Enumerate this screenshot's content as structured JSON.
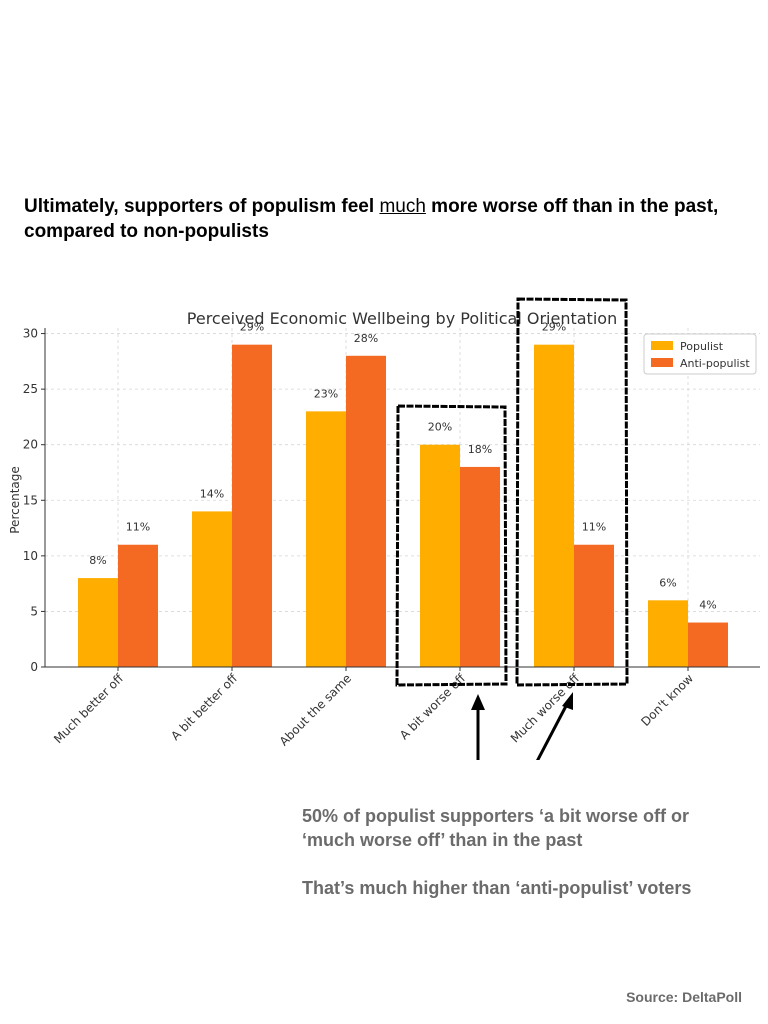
{
  "headline": {
    "before": "Ultimately, supporters of populism feel ",
    "emphasis": "much",
    "after": " more worse off than in the past, compared to non-populists"
  },
  "chart_data": {
    "type": "bar",
    "title": "Perceived Economic Wellbeing by Political Orientation",
    "xlabel": "",
    "ylabel": "Percentage",
    "ylim": [
      0,
      30.5
    ],
    "yticks": [
      0,
      5,
      10,
      15,
      20,
      25,
      30
    ],
    "grid": true,
    "legend_position": "top-right",
    "categories": [
      "Much better off",
      "A bit better off",
      "About the same",
      "A bit worse off",
      "Much worse off",
      "Don't know"
    ],
    "series": [
      {
        "name": "Populist",
        "color": "#FFAE00",
        "values": [
          8,
          14,
          23,
          20,
          29,
          6
        ],
        "labels": [
          "8%",
          "14%",
          "23%",
          "20%",
          "29%",
          "6%"
        ]
      },
      {
        "name": "Anti-populist",
        "color": "#F46A23",
        "values": [
          11,
          29,
          28,
          18,
          11,
          4
        ],
        "labels": [
          "11%",
          "29%",
          "28%",
          "18%",
          "11%",
          "4%"
        ]
      }
    ],
    "highlighted_categories": [
      "A bit worse off",
      "Much worse off"
    ]
  },
  "annotation": {
    "line1": "50% of populist supporters ‘a bit worse off or ‘much worse off’ than in the past",
    "line2": "That’s much higher than ‘anti-populist’ voters"
  },
  "source": "Source: DeltaPoll"
}
